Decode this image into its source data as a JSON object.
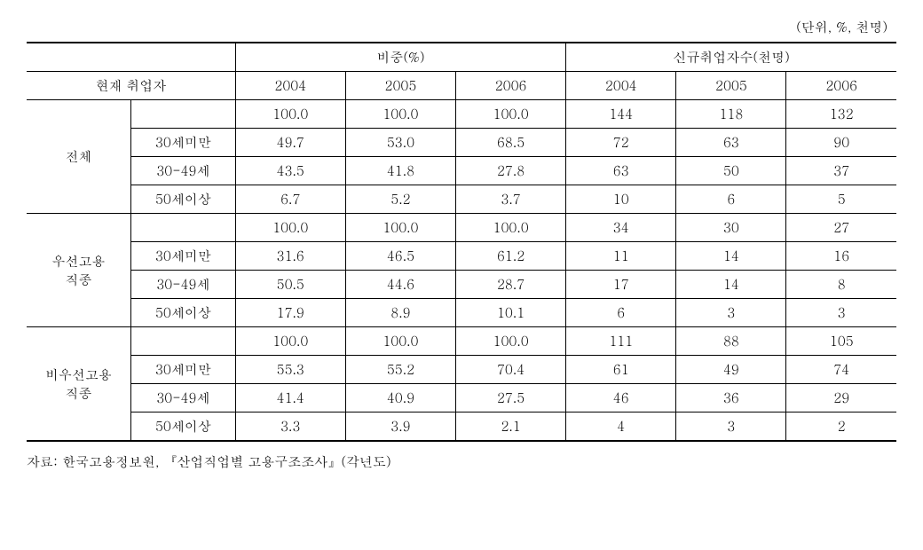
{
  "unit_label": "(단위, %, 천명)",
  "headers": {
    "section1": "비중(%)",
    "section2": "신규취업자수(천명)",
    "rowlabel": "현재 취업자",
    "years": [
      "2004",
      "2005",
      "2006"
    ]
  },
  "groups": [
    {
      "name": "전체",
      "rows": [
        {
          "label": "",
          "pct": [
            "100.0",
            "100.0",
            "100.0"
          ],
          "cnt": [
            "144",
            "118",
            "132"
          ]
        },
        {
          "label": "30세미만",
          "pct": [
            "49.7",
            "53.0",
            "68.5"
          ],
          "cnt": [
            "72",
            "63",
            "90"
          ]
        },
        {
          "label": "30-49세",
          "pct": [
            "43.5",
            "41.8",
            "27.8"
          ],
          "cnt": [
            "63",
            "50",
            "37"
          ]
        },
        {
          "label": "50세이상",
          "pct": [
            "6.7",
            "5.2",
            "3.7"
          ],
          "cnt": [
            "10",
            "6",
            "5"
          ]
        }
      ]
    },
    {
      "name": "우선고용\n직종",
      "rows": [
        {
          "label": "",
          "pct": [
            "100.0",
            "100.0",
            "100.0"
          ],
          "cnt": [
            "34",
            "30",
            "27"
          ]
        },
        {
          "label": "30세미만",
          "pct": [
            "31.6",
            "46.5",
            "61.2"
          ],
          "cnt": [
            "11",
            "14",
            "16"
          ]
        },
        {
          "label": "30-49세",
          "pct": [
            "50.5",
            "44.6",
            "28.7"
          ],
          "cnt": [
            "17",
            "14",
            "8"
          ]
        },
        {
          "label": "50세이상",
          "pct": [
            "17.9",
            "8.9",
            "10.1"
          ],
          "cnt": [
            "6",
            "3",
            "3"
          ]
        }
      ]
    },
    {
      "name": "비우선고용\n직종",
      "rows": [
        {
          "label": "",
          "pct": [
            "100.0",
            "100.0",
            "100.0"
          ],
          "cnt": [
            "111",
            "88",
            "105"
          ]
        },
        {
          "label": "30세미만",
          "pct": [
            "55.3",
            "55.2",
            "70.4"
          ],
          "cnt": [
            "61",
            "49",
            "74"
          ]
        },
        {
          "label": "30-49세",
          "pct": [
            "41.4",
            "40.9",
            "27.5"
          ],
          "cnt": [
            "46",
            "36",
            "29"
          ]
        },
        {
          "label": "50세이상",
          "pct": [
            "3.3",
            "3.9",
            "2.1"
          ],
          "cnt": [
            "4",
            "3",
            "2"
          ]
        }
      ]
    }
  ],
  "source_note": "자료: 한국고용정보원, 『산업직업별 고용구조조사』(각년도)",
  "style": {
    "text_color": "#000000",
    "background_color": "#ffffff",
    "border_color": "#000000",
    "font_size_body": 15,
    "col_widths_pct": [
      12,
      12,
      12.67,
      12.67,
      12.67,
      12.67,
      12.67,
      12.67
    ]
  }
}
